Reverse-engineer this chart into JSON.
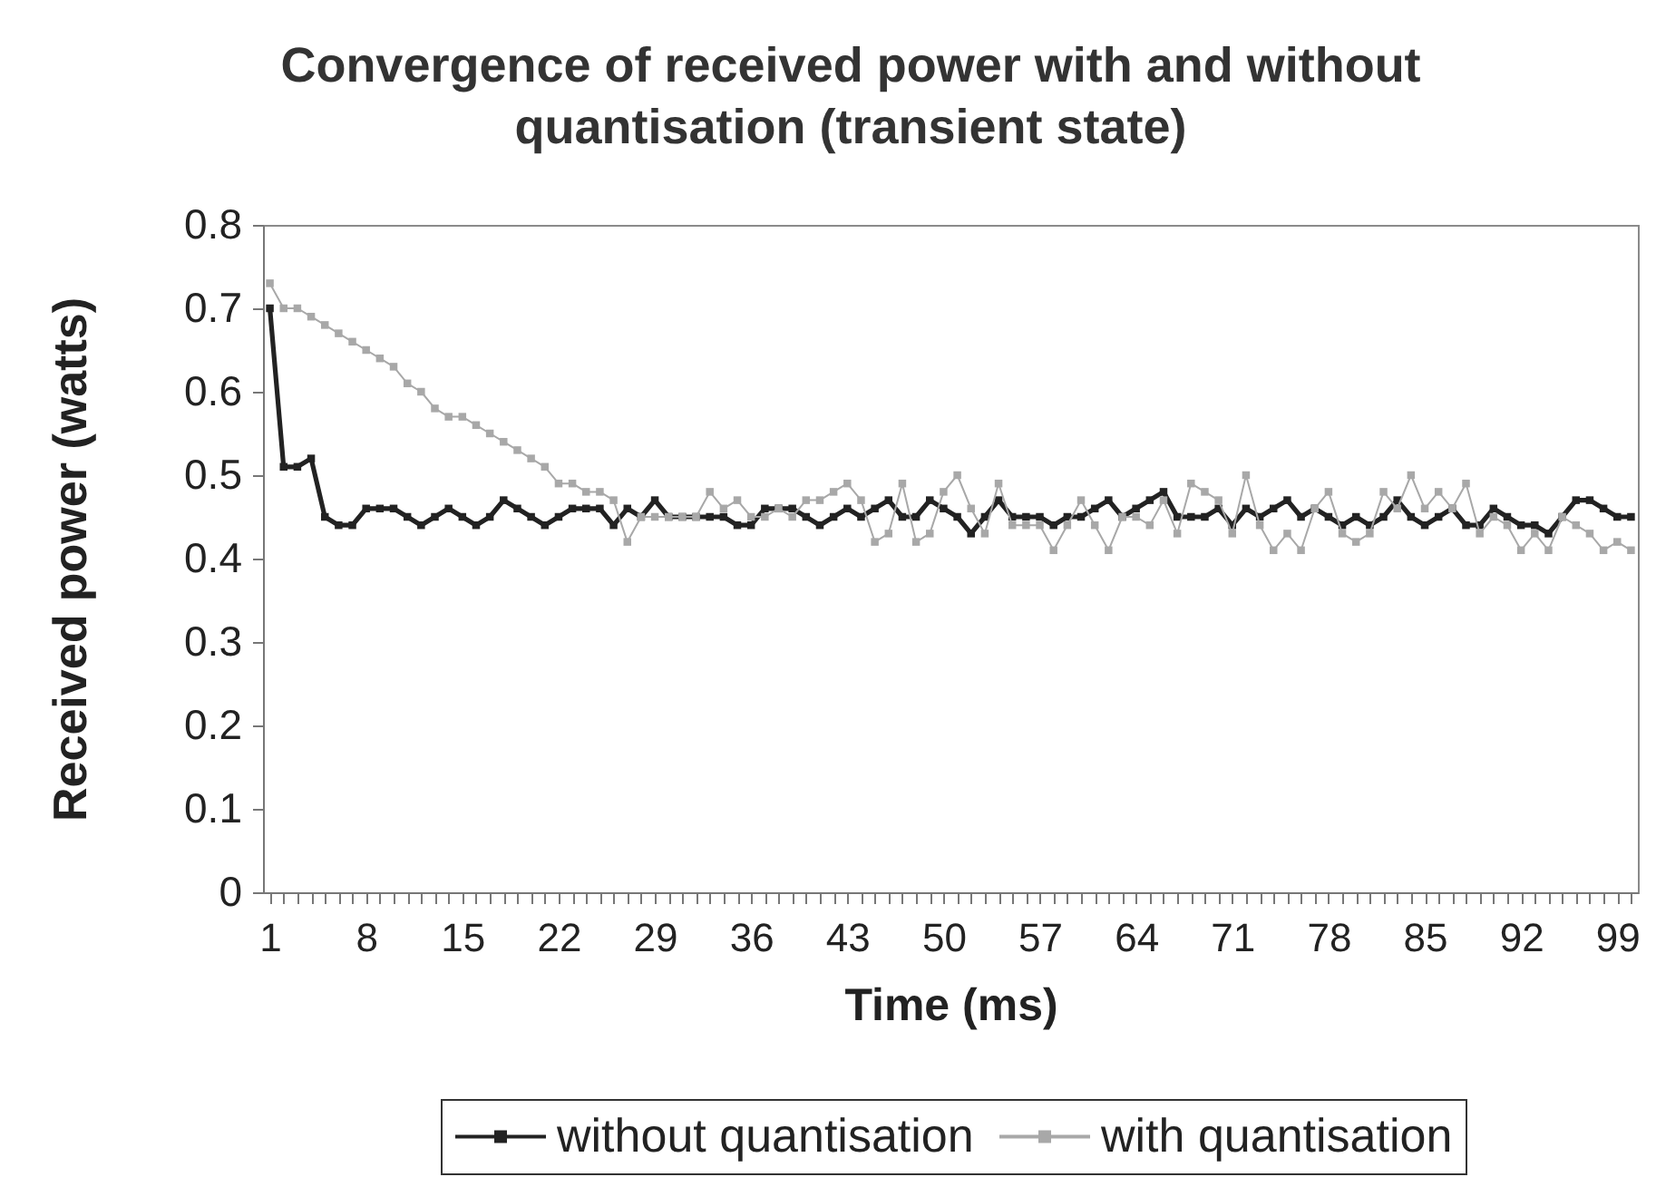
{
  "chart_data": {
    "type": "line",
    "title": "Convergence of received power with and without quantisation (transient state)",
    "xlabel": "Time (ms)",
    "ylabel": "Received power (watts)",
    "categories": [
      "1",
      null,
      null,
      null,
      null,
      null,
      null,
      "8",
      null,
      null,
      null,
      null,
      null,
      null,
      "15",
      null,
      null,
      null,
      null,
      null,
      null,
      "22",
      null,
      null,
      null,
      null,
      null,
      null,
      "29",
      null,
      null,
      null,
      null,
      null,
      null,
      "36",
      null,
      null,
      null,
      null,
      null,
      null,
      "43",
      null,
      null,
      null,
      null,
      null,
      null,
      "50",
      null,
      null,
      null,
      null,
      null,
      null,
      "57",
      null,
      null,
      null,
      null,
      null,
      null,
      "64",
      null,
      null,
      null,
      null,
      null,
      null,
      "71",
      null,
      null,
      null,
      null,
      null,
      null,
      "78",
      null,
      null,
      null,
      null,
      null,
      null,
      "85",
      null,
      null,
      null,
      null,
      null,
      null,
      "92",
      null,
      null,
      null,
      null,
      null,
      null,
      "99",
      null
    ],
    "series": [
      {
        "name": "without quantisation",
        "color": "#222222",
        "values": [
          0.7,
          0.51,
          0.51,
          0.52,
          0.45,
          0.44,
          0.44,
          0.46,
          0.46,
          0.46,
          0.45,
          0.44,
          0.45,
          0.46,
          0.45,
          0.44,
          0.45,
          0.47,
          0.46,
          0.45,
          0.44,
          0.45,
          0.46,
          0.46,
          0.46,
          0.44,
          0.46,
          0.45,
          0.47,
          0.45,
          0.45,
          0.45,
          0.45,
          0.45,
          0.44,
          0.44,
          0.46,
          0.46,
          0.46,
          0.45,
          0.44,
          0.45,
          0.46,
          0.45,
          0.46,
          0.47,
          0.45,
          0.45,
          0.47,
          0.46,
          0.45,
          0.43,
          0.45,
          0.47,
          0.45,
          0.45,
          0.45,
          0.44,
          0.45,
          0.45,
          0.46,
          0.47,
          0.45,
          0.46,
          0.47,
          0.48,
          0.45,
          0.45,
          0.45,
          0.46,
          0.44,
          0.46,
          0.45,
          0.46,
          0.47,
          0.45,
          0.46,
          0.45,
          0.44,
          0.45,
          0.44,
          0.45,
          0.47,
          0.45,
          0.44,
          0.45,
          0.46,
          0.44,
          0.44,
          0.46,
          0.45,
          0.44,
          0.44,
          0.43,
          0.45,
          0.47,
          0.47,
          0.46,
          0.45,
          0.45
        ]
      },
      {
        "name": "with quantisation",
        "color": "#a8a8a8",
        "values": [
          0.73,
          0.7,
          0.7,
          0.69,
          0.68,
          0.67,
          0.66,
          0.65,
          0.64,
          0.63,
          0.61,
          0.6,
          0.58,
          0.57,
          0.57,
          0.56,
          0.55,
          0.54,
          0.53,
          0.52,
          0.51,
          0.49,
          0.49,
          0.48,
          0.48,
          0.47,
          0.42,
          0.45,
          0.45,
          0.45,
          0.45,
          0.45,
          0.48,
          0.46,
          0.47,
          0.45,
          0.45,
          0.46,
          0.45,
          0.47,
          0.47,
          0.48,
          0.49,
          0.47,
          0.42,
          0.43,
          0.49,
          0.42,
          0.43,
          0.48,
          0.5,
          0.46,
          0.43,
          0.49,
          0.44,
          0.44,
          0.44,
          0.41,
          0.44,
          0.47,
          0.44,
          0.41,
          0.45,
          0.45,
          0.44,
          0.47,
          0.43,
          0.49,
          0.48,
          0.47,
          0.43,
          0.5,
          0.44,
          0.41,
          0.43,
          0.41,
          0.46,
          0.48,
          0.43,
          0.42,
          0.43,
          0.48,
          0.46,
          0.5,
          0.46,
          0.48,
          0.46,
          0.49,
          0.43,
          0.45,
          0.44,
          0.41,
          0.43,
          0.41,
          0.45,
          0.44,
          0.43,
          0.41,
          0.42,
          0.41
        ]
      }
    ],
    "ylim": [
      0,
      0.8
    ],
    "yticks": [
      0,
      0.1,
      0.2,
      0.3,
      0.4,
      0.5,
      0.6,
      0.7,
      0.8
    ],
    "grid": false,
    "legend": "bottom",
    "marker": "square"
  }
}
